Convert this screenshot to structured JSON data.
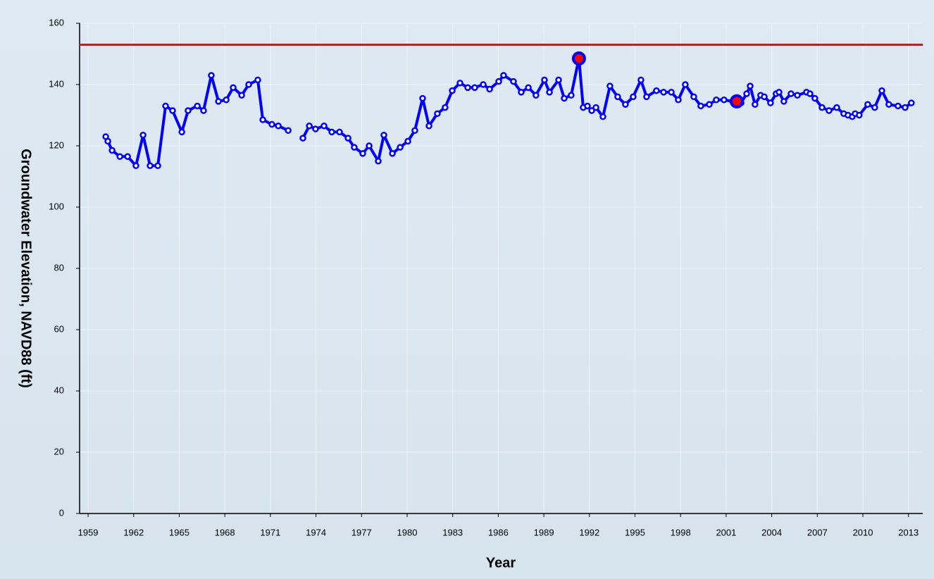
{
  "chart_data": {
    "type": "line",
    "x_label": "Year",
    "y_label": "Groundwater Elevation, NAVD88 (ft)",
    "xlim": [
      1958.44,
      2013.94
    ],
    "xticks": [
      1959,
      1962,
      1965,
      1968,
      1971,
      1974,
      1977,
      1980,
      1983,
      1986,
      1989,
      1992,
      1995,
      1998,
      2001,
      2004,
      2007,
      2010,
      2013
    ],
    "ylim": [
      0,
      160
    ],
    "yticks": [
      0,
      20,
      40,
      60,
      80,
      100,
      120,
      140,
      160
    ],
    "grid": true,
    "reference_line": {
      "value": 153,
      "color": "#a52a2a"
    },
    "series": [
      {
        "color": "#0000ff",
        "x": [
          1960.16,
          1960.3,
          1960.58,
          1961.09,
          1961.6,
          1962.15,
          1962.62,
          1963.08,
          1963.59,
          1964.1,
          1964.56,
          1965.17,
          1965.58,
          1966.19,
          1966.6,
          1967.11,
          1967.58,
          1968.09,
          1968.55,
          1969.11,
          1969.57,
          1970.17,
          1970.5,
          1971.1,
          1971.52,
          1972.17,
          null,
          1973.14,
          1973.56,
          1973.97,
          1974.53,
          1975.04,
          1975.55,
          1976.11,
          1976.52,
          1977.08,
          1977.5,
          1978.1,
          1978.47,
          1979.03,
          1979.54,
          1980.05,
          1980.51,
          1981.02,
          1981.44,
          1981.99,
          1982.5,
          1982.97,
          1983.48,
          1983.99,
          1984.45,
          1985.01,
          1985.43,
          1986.03,
          1986.35,
          1987.0,
          1987.51,
          1987.98,
          1988.48,
          1989.04,
          1989.37,
          1989.97,
          1990.34,
          1990.8,
          1991.31,
          1991.59,
          1991.87,
          1992.15,
          1992.43,
          1992.89,
          1993.35,
          1993.86,
          1994.37,
          1994.88,
          1995.39,
          1995.76,
          1996.41,
          1996.88,
          1997.39,
          1997.85,
          1998.31,
          1998.87,
          1999.33,
          1999.89,
          2000.35,
          2000.86,
          2001.42,
          2001.7,
          2001.98,
          2002.35,
          2002.58,
          2002.9,
          2003.27,
          2003.51,
          2003.92,
          2004.29,
          2004.48,
          2004.8,
          2005.27,
          2005.69,
          2006.29,
          2006.52,
          2006.84,
          2007.31,
          2007.77,
          2008.28,
          2008.74,
          2009.02,
          2009.3,
          2009.49,
          2009.76,
          2010.32,
          2010.78,
          2011.25,
          2011.71,
          2012.31,
          2012.78,
          2013.19
        ],
        "values": [
          123,
          121.5,
          118.5,
          116.5,
          116.5,
          113.5,
          123.5,
          113.5,
          113.5,
          133,
          131.5,
          124.5,
          131.5,
          133,
          131.5,
          143,
          134.5,
          135,
          139,
          136.5,
          140,
          141.5,
          128.5,
          127,
          126.5,
          125,
          null,
          122.5,
          126.5,
          125.5,
          126.5,
          124.5,
          124.5,
          122.5,
          119.5,
          117.5,
          120,
          115,
          123.5,
          117.5,
          119.5,
          121.5,
          125,
          135.5,
          126.5,
          130.5,
          132.5,
          138,
          140.5,
          139,
          139,
          140,
          138.5,
          141,
          143,
          141,
          137.5,
          139,
          136.5,
          141.5,
          137.5,
          141.5,
          135.5,
          136.5,
          148.5,
          132.5,
          133,
          131.5,
          132.5,
          129.5,
          139.5,
          136,
          133.5,
          136,
          141.5,
          136,
          138,
          137.5,
          137.5,
          135,
          140,
          136,
          133,
          133.5,
          135,
          135,
          134.5,
          134.5,
          134,
          137,
          139.5,
          133.5,
          136.5,
          136,
          134,
          137,
          137.5,
          134.5,
          137,
          136.5,
          137.5,
          137,
          135.5,
          132.5,
          131.5,
          132.5,
          130.5,
          130,
          129.5,
          130.5,
          130,
          133.5,
          132.5,
          138,
          133.5,
          133,
          132.5,
          134
        ]
      }
    ],
    "highlights": {
      "color": "#ff0000",
      "x": [
        1991.31,
        2001.7
      ],
      "values": [
        148.5,
        134.5
      ]
    }
  }
}
